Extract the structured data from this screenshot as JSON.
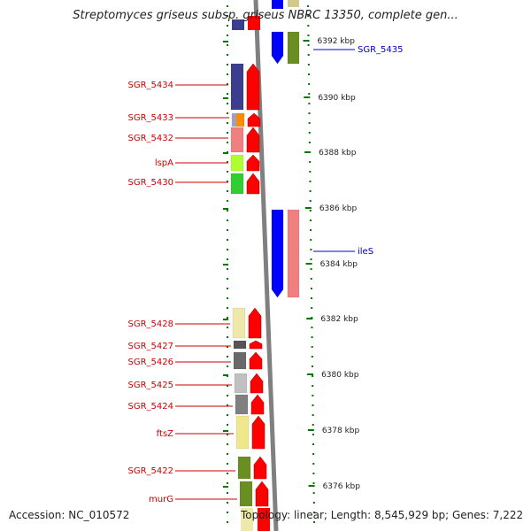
{
  "title": "Streptomyces griseus subsp. griseus NBRC 13350, complete gen...",
  "accession_text": "Accession: NC_010572",
  "summary_text": "Topology: linear; Length: 8,545,929 bp; Genes: 7,222",
  "colors": {
    "strand_arrow": "#ff0000",
    "label_left": "#cc0000",
    "label_right": "#0000cc",
    "tick": "#007700",
    "axis": "#808080"
  },
  "scale_labels": [
    "6392 kbp",
    "6390 kbp",
    "6388 kbp",
    "6386 kbp",
    "6384 kbp",
    "6382 kbp",
    "6380 kbp",
    "6378 kbp",
    "6376 kbp"
  ],
  "left_genes": [
    {
      "label": "SGR_5434",
      "color": "#3d3d8f"
    },
    {
      "label": "SGR_5433",
      "color": "#ff8c00"
    },
    {
      "label": "SGR_5432",
      "color": "#f08080"
    },
    {
      "label": "lspA",
      "color": "#adff2f"
    },
    {
      "label": "SGR_5430",
      "color": "#32cd32"
    },
    {
      "label": "SGR_5428",
      "color": "#eee8aa"
    },
    {
      "label": "SGR_5427",
      "color": "#555555"
    },
    {
      "label": "SGR_5426",
      "color": "#696969"
    },
    {
      "label": "SGR_5425",
      "color": "#c0c0c0"
    },
    {
      "label": "SGR_5424",
      "color": "#808080"
    },
    {
      "label": "ftsZ",
      "color": "#f0e68c"
    },
    {
      "label": "SGR_5422",
      "color": "#6b8e23"
    },
    {
      "label": "murG",
      "color": "#6b8e23"
    }
  ],
  "right_genes": [
    {
      "label": "SGR_5435",
      "color": "#0000ff"
    },
    {
      "label": "ileS",
      "color": "#0000ff"
    }
  ]
}
